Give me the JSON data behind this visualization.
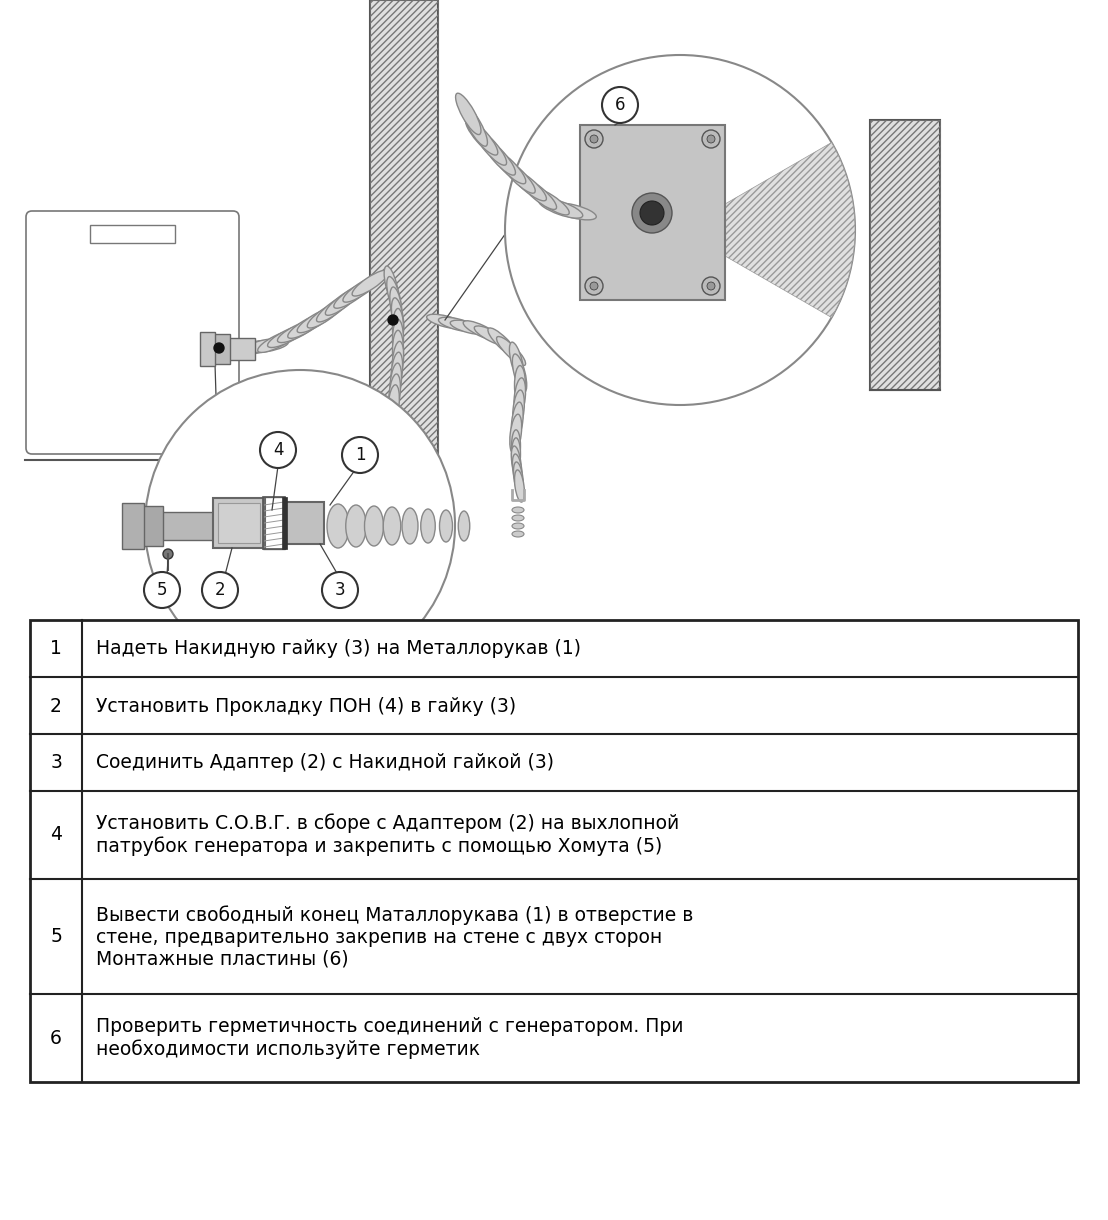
{
  "bg_color": "#ffffff",
  "table_data": [
    [
      "1",
      "Надеть Накидную гайку (3) на Металлорукав (1)"
    ],
    [
      "2",
      "Установить Прокладку ПОН (4) в гайку (3)"
    ],
    [
      "3",
      "Соединить Адаптер (2) с Накидной гайкой (3)"
    ],
    [
      "4",
      "Установить С.О.В.Г. в сборе с Адаптером (2) на выхлопной\nпатрубок генератора и закрепить с помощью Хомута (5)"
    ],
    [
      "5",
      "Вывести свободный конец Маталлорукава (1) в отверстие в\nстене, предварительно закрепив на стене с двух сторон\nМонтажные пластины (6)"
    ],
    [
      "6",
      "Проверить герметичность соединений с генератором. При\nнеобходимости используйте герметик"
    ]
  ],
  "font_size": 13.5,
  "line_color": "#222222",
  "text_color": "#000000"
}
